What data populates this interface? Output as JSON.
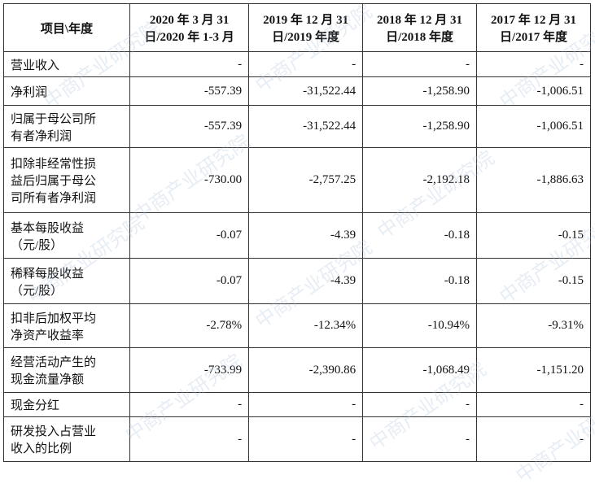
{
  "table": {
    "header": [
      [
        "项目\\年度"
      ],
      [
        "2020 年 3 月 31",
        "日/2020 年 1-3 月"
      ],
      [
        "2019 年 12 月 31",
        "日/2019 年度"
      ],
      [
        "2018 年 12 月 31",
        "日/2018 年度"
      ],
      [
        "2017 年 12 月 31",
        "日/2017 年度"
      ]
    ],
    "rows": [
      [
        [
          "营业收入"
        ],
        "-",
        "-",
        "-",
        "-"
      ],
      [
        [
          "净利润"
        ],
        "-557.39",
        "-31,522.44",
        "-1,258.90",
        "-1,006.51"
      ],
      [
        [
          "归属于母公司所",
          "有者净利润"
        ],
        "-557.39",
        "-31,522.44",
        "-1,258.90",
        "-1,006.51"
      ],
      [
        [
          "扣除非经常性损",
          "益后归属于母公",
          "司所有者净利润"
        ],
        "-730.00",
        "-2,757.25",
        "-2,192.18",
        "-1,886.63"
      ],
      [
        [
          "基本每股收益",
          "（元/股）"
        ],
        "-0.07",
        "-4.39",
        "-0.18",
        "-0.15"
      ],
      [
        [
          "稀释每股收益",
          "（元/股）"
        ],
        "-0.07",
        "-4.39",
        "-0.18",
        "-0.15"
      ],
      [
        [
          "扣非后加权平均",
          "净资产收益率"
        ],
        "-2.78%",
        "-12.34%",
        "-10.94%",
        "-9.31%"
      ],
      [
        [
          "经营活动产生的",
          "现金流量净额"
        ],
        "-733.99",
        "-2,390.86",
        "-1,068.49",
        "-1,151.20"
      ],
      [
        [
          "现金分红"
        ],
        "-",
        "-",
        "-",
        "-"
      ],
      [
        [
          "研发投入占营业",
          "收入的比例"
        ],
        "-",
        "-",
        "-",
        "-"
      ]
    ]
  },
  "watermark": "中商产业研究院"
}
